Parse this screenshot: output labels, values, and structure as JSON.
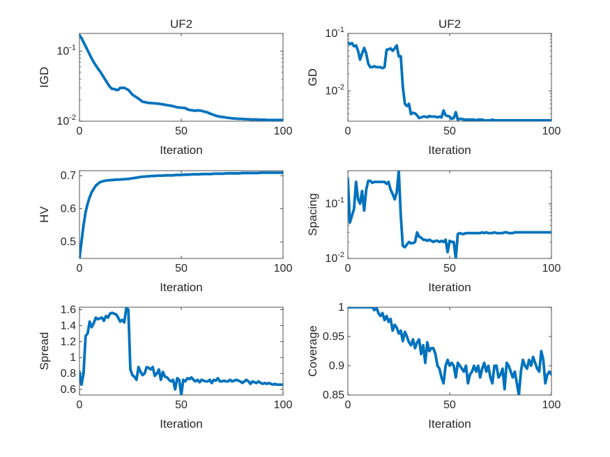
{
  "style": {
    "line_color": "#0072BD",
    "axes_color": "#262626",
    "background": "#ffffff"
  },
  "chart_data": [
    {
      "id": "igd",
      "type": "line",
      "title": "UF2",
      "xlabel": "Iteration",
      "ylabel": "IGD",
      "yscale": "log",
      "xlim": [
        0,
        100
      ],
      "ylim": [
        0.01,
        0.18
      ],
      "xticks": [
        0,
        50,
        100
      ],
      "yticks": [
        0.01,
        0.1
      ],
      "ytick_labels": [
        "10^-2",
        "10^-1"
      ],
      "grid": false,
      "x_step": 1,
      "values": [
        0.17,
        0.155,
        0.135,
        0.118,
        0.103,
        0.09,
        0.079,
        0.07,
        0.063,
        0.057,
        0.052,
        0.047,
        0.042,
        0.038,
        0.034,
        0.031,
        0.029,
        0.029,
        0.028,
        0.028,
        0.03,
        0.03,
        0.03,
        0.029,
        0.028,
        0.026,
        0.024,
        0.023,
        0.022,
        0.021,
        0.02,
        0.019,
        0.0188,
        0.0185,
        0.0183,
        0.0182,
        0.0181,
        0.018,
        0.0179,
        0.0178,
        0.0176,
        0.0174,
        0.0172,
        0.017,
        0.0168,
        0.0166,
        0.0164,
        0.0161,
        0.0158,
        0.0157,
        0.0156,
        0.0155,
        0.0154,
        0.0148,
        0.0145,
        0.0144,
        0.0142,
        0.0141,
        0.0143,
        0.0142,
        0.0141,
        0.0138,
        0.0136,
        0.0133,
        0.0129,
        0.0126,
        0.0123,
        0.012,
        0.0118,
        0.0116,
        0.0115,
        0.0114,
        0.0113,
        0.0112,
        0.0111,
        0.011,
        0.0109,
        0.0109,
        0.0108,
        0.0108,
        0.0108,
        0.0107,
        0.0107,
        0.0107,
        0.0106,
        0.0106,
        0.0106,
        0.0106,
        0.0105,
        0.0105,
        0.0105,
        0.0105,
        0.0104,
        0.0104,
        0.0104,
        0.0104,
        0.0104,
        0.0104,
        0.0104,
        0.0104,
        0.0104
      ]
    },
    {
      "id": "gd",
      "type": "line",
      "title": "UF2",
      "xlabel": "Iteration",
      "ylabel": "GD",
      "yscale": "log",
      "xlim": [
        0,
        100
      ],
      "ylim": [
        0.003,
        0.1
      ],
      "xticks": [
        0,
        50,
        100
      ],
      "yticks": [
        0.01,
        0.1
      ],
      "ytick_labels": [
        "10^-2",
        "10^-1"
      ],
      "grid": false,
      "x_step": 1,
      "values": [
        0.07,
        0.065,
        0.068,
        0.06,
        0.062,
        0.05,
        0.035,
        0.045,
        0.056,
        0.045,
        0.03,
        0.026,
        0.026,
        0.027,
        0.026,
        0.026,
        0.026,
        0.025,
        0.026,
        0.052,
        0.053,
        0.055,
        0.05,
        0.055,
        0.062,
        0.04,
        0.04,
        0.012,
        0.006,
        0.0055,
        0.006,
        0.004,
        0.0042,
        0.0041,
        0.0038,
        0.0034,
        0.0035,
        0.0036,
        0.0036,
        0.0035,
        0.0037,
        0.0036,
        0.0036,
        0.0036,
        0.0035,
        0.0036,
        0.0035,
        0.0046,
        0.0038,
        0.0037,
        0.0036,
        0.0033,
        0.0034,
        0.0043,
        0.0032,
        0.0033,
        0.0033,
        0.0032,
        0.0032,
        0.0032,
        0.0032,
        0.0032,
        0.0032,
        0.0031,
        0.0032,
        0.0032,
        0.0032,
        0.0031,
        0.0031,
        0.0031,
        0.0031,
        0.0032,
        0.0031,
        0.0031,
        0.0031,
        0.0031,
        0.0031,
        0.0031,
        0.0031,
        0.0031,
        0.0031,
        0.0031,
        0.0031,
        0.0031,
        0.0031,
        0.0031,
        0.0031,
        0.0031,
        0.0031,
        0.0031,
        0.0031,
        0.0031,
        0.0031,
        0.0031,
        0.0031,
        0.0031,
        0.0031,
        0.0031,
        0.0031,
        0.0031,
        0.0031
      ]
    },
    {
      "id": "hv",
      "type": "line",
      "title": "",
      "xlabel": "Iteration",
      "ylabel": "HV",
      "yscale": "linear",
      "xlim": [
        0,
        100
      ],
      "ylim": [
        0.45,
        0.715
      ],
      "xticks": [
        0,
        50,
        100
      ],
      "yticks": [
        0.5,
        0.6,
        0.7
      ],
      "ytick_labels": [
        "0.5",
        "0.6",
        "0.7"
      ],
      "grid": false,
      "x_step": 1,
      "values": [
        0.45,
        0.5,
        0.55,
        0.59,
        0.615,
        0.635,
        0.65,
        0.66,
        0.67,
        0.675,
        0.68,
        0.682,
        0.684,
        0.685,
        0.686,
        0.686,
        0.687,
        0.687,
        0.688,
        0.688,
        0.688,
        0.689,
        0.689,
        0.69,
        0.69,
        0.691,
        0.692,
        0.693,
        0.694,
        0.695,
        0.696,
        0.697,
        0.697,
        0.698,
        0.698,
        0.699,
        0.699,
        0.699,
        0.7,
        0.7,
        0.7,
        0.7,
        0.701,
        0.701,
        0.701,
        0.701,
        0.701,
        0.702,
        0.702,
        0.702,
        0.702,
        0.703,
        0.703,
        0.703,
        0.703,
        0.704,
        0.704,
        0.704,
        0.704,
        0.704,
        0.705,
        0.705,
        0.705,
        0.705,
        0.705,
        0.705,
        0.706,
        0.706,
        0.706,
        0.706,
        0.706,
        0.706,
        0.707,
        0.707,
        0.707,
        0.707,
        0.707,
        0.707,
        0.707,
        0.707,
        0.708,
        0.708,
        0.708,
        0.708,
        0.708,
        0.708,
        0.708,
        0.708,
        0.708,
        0.709,
        0.709,
        0.709,
        0.709,
        0.709,
        0.709,
        0.709,
        0.709,
        0.709,
        0.709,
        0.709,
        0.709
      ]
    },
    {
      "id": "spacing",
      "type": "line",
      "title": "",
      "xlabel": "Iteration",
      "ylabel": "Spacing",
      "yscale": "log",
      "xlim": [
        0,
        100
      ],
      "ylim": [
        0.01,
        0.4
      ],
      "xticks": [
        0,
        50,
        100
      ],
      "yticks": [
        0.01,
        0.1
      ],
      "ytick_labels": [
        "10^-2",
        "10^-1"
      ],
      "grid": false,
      "x_step": 1,
      "values": [
        0.28,
        0.045,
        0.06,
        0.08,
        0.25,
        0.12,
        0.1,
        0.17,
        0.075,
        0.18,
        0.26,
        0.26,
        0.24,
        0.25,
        0.25,
        0.25,
        0.25,
        0.25,
        0.25,
        0.23,
        0.25,
        0.18,
        0.15,
        0.12,
        0.16,
        0.4,
        0.06,
        0.017,
        0.016,
        0.018,
        0.02,
        0.019,
        0.019,
        0.02,
        0.03,
        0.025,
        0.024,
        0.022,
        0.022,
        0.021,
        0.022,
        0.021,
        0.02,
        0.021,
        0.021,
        0.02,
        0.021,
        0.02,
        0.022,
        0.013,
        0.021,
        0.02,
        0.02,
        0.01,
        0.028,
        0.029,
        0.028,
        0.028,
        0.029,
        0.029,
        0.029,
        0.029,
        0.029,
        0.029,
        0.029,
        0.029,
        0.03,
        0.029,
        0.03,
        0.029,
        0.029,
        0.029,
        0.03,
        0.029,
        0.029,
        0.029,
        0.029,
        0.03,
        0.03,
        0.029,
        0.029,
        0.029,
        0.03,
        0.03,
        0.03,
        0.03,
        0.03,
        0.03,
        0.03,
        0.03,
        0.03,
        0.03,
        0.03,
        0.03,
        0.03,
        0.03,
        0.03,
        0.03,
        0.03,
        0.03,
        0.03
      ]
    },
    {
      "id": "spread",
      "type": "line",
      "title": "",
      "xlabel": "Iteration",
      "ylabel": "Spread",
      "yscale": "linear",
      "xlim": [
        0,
        100
      ],
      "ylim": [
        0.53,
        1.63
      ],
      "xticks": [
        0,
        50,
        100
      ],
      "yticks": [
        0.6,
        0.8,
        1,
        1.2,
        1.4,
        1.6
      ],
      "ytick_labels": [
        "0.6",
        "0.8",
        "1",
        "1.2",
        "1.4",
        "1.6"
      ],
      "grid": false,
      "x_step": 1,
      "values": [
        0.82,
        0.66,
        0.8,
        1.27,
        1.3,
        1.45,
        1.38,
        1.43,
        1.5,
        1.48,
        1.49,
        1.5,
        1.46,
        1.52,
        1.5,
        1.55,
        1.56,
        1.55,
        1.54,
        1.5,
        1.45,
        1.47,
        1.44,
        1.62,
        1.6,
        0.85,
        0.78,
        0.76,
        0.72,
        0.88,
        0.82,
        0.78,
        0.8,
        0.88,
        0.87,
        0.85,
        0.88,
        0.77,
        0.8,
        0.85,
        0.72,
        0.82,
        0.76,
        0.75,
        0.72,
        0.7,
        0.72,
        0.6,
        0.74,
        0.72,
        0.53,
        0.72,
        0.7,
        0.74,
        0.73,
        0.75,
        0.72,
        0.7,
        0.72,
        0.69,
        0.72,
        0.71,
        0.7,
        0.7,
        0.72,
        0.68,
        0.72,
        0.71,
        0.74,
        0.7,
        0.7,
        0.71,
        0.7,
        0.7,
        0.72,
        0.7,
        0.71,
        0.72,
        0.71,
        0.7,
        0.68,
        0.7,
        0.72,
        0.7,
        0.67,
        0.7,
        0.69,
        0.68,
        0.7,
        0.68,
        0.67,
        0.68,
        0.67,
        0.68,
        0.67,
        0.66,
        0.67,
        0.66,
        0.66,
        0.66,
        0.66
      ]
    },
    {
      "id": "coverage",
      "type": "line",
      "title": "",
      "xlabel": "Iteration",
      "ylabel": "Coverage",
      "yscale": "linear",
      "xlim": [
        0,
        100
      ],
      "ylim": [
        0.85,
        1.0
      ],
      "xticks": [
        0,
        50,
        100
      ],
      "yticks": [
        0.85,
        0.9,
        0.95,
        1
      ],
      "ytick_labels": [
        "0.85",
        "0.9",
        "0.95",
        "1"
      ],
      "grid": false,
      "x_step": 1,
      "values": [
        1,
        1,
        1,
        1,
        1,
        1,
        1,
        1,
        1,
        1,
        1,
        1,
        1,
        0.995,
        1,
        0.99,
        0.985,
        0.99,
        0.978,
        0.985,
        0.975,
        0.98,
        0.96,
        0.97,
        0.965,
        0.955,
        0.96,
        0.942,
        0.958,
        0.95,
        0.94,
        0.935,
        0.945,
        0.93,
        0.94,
        0.945,
        0.92,
        0.935,
        0.905,
        0.94,
        0.925,
        0.93,
        0.93,
        0.92,
        0.9,
        0.895,
        0.88,
        0.87,
        0.9,
        0.91,
        0.9,
        0.905,
        0.9,
        0.88,
        0.905,
        0.9,
        0.895,
        0.89,
        0.9,
        0.87,
        0.885,
        0.89,
        0.9,
        0.89,
        0.9,
        0.88,
        0.895,
        0.905,
        0.89,
        0.9,
        0.88,
        0.87,
        0.9,
        0.9,
        0.88,
        0.885,
        0.895,
        0.86,
        0.905,
        0.9,
        0.89,
        0.88,
        0.89,
        0.87,
        0.85,
        0.89,
        0.91,
        0.9,
        0.895,
        0.91,
        0.9,
        0.915,
        0.905,
        0.895,
        0.89,
        0.925,
        0.91,
        0.87,
        0.885,
        0.89,
        0.885
      ]
    }
  ]
}
